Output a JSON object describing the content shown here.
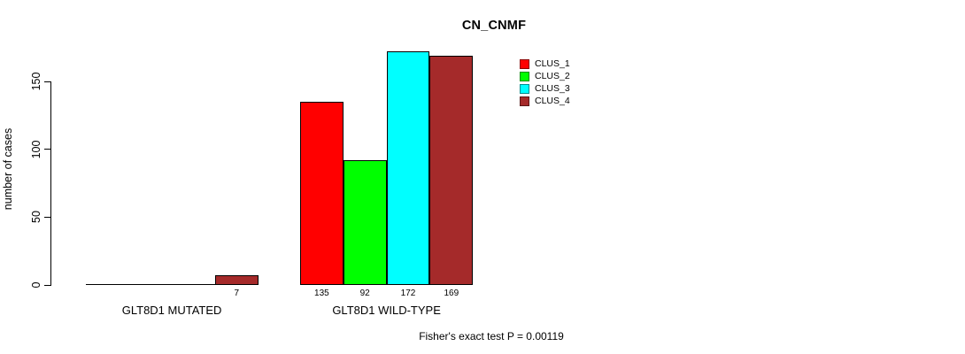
{
  "chart_data": {
    "type": "bar",
    "title": "CN_CNMF",
    "ylabel": "number of cases",
    "xlabel": "",
    "ylim": [
      0,
      150
    ],
    "yticks": [
      0,
      50,
      100,
      150
    ],
    "grid": false,
    "legend_position": "top-right",
    "series": [
      {
        "name": "CLUS_1",
        "color": "#FF0000"
      },
      {
        "name": "CLUS_2",
        "color": "#00FF00"
      },
      {
        "name": "CLUS_3",
        "color": "#00FFFF"
      },
      {
        "name": "CLUS_4",
        "color": "#A52A2A"
      }
    ],
    "groups": [
      {
        "label": "GLT8D1 MUTATED",
        "values": [
          0,
          0,
          0,
          7
        ],
        "value_labels": [
          "",
          "",
          "",
          "7"
        ]
      },
      {
        "label": "GLT8D1 WILD-TYPE",
        "values": [
          135,
          92,
          172,
          169
        ],
        "value_labels": [
          "135",
          "92",
          "172",
          "169"
        ]
      }
    ],
    "annotation": "Fisher's exact test P = 0.00119"
  }
}
